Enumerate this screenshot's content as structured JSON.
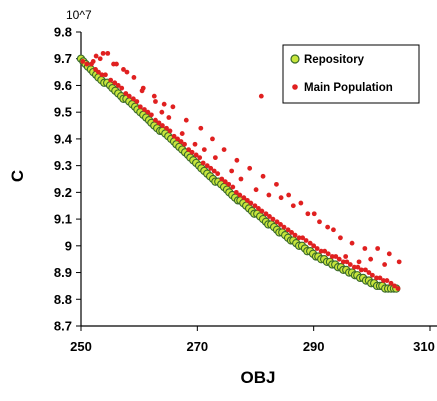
{
  "chart_data": {
    "type": "scatter",
    "title": "",
    "xlabel": "OBJ",
    "ylabel": "C",
    "y_multiplier_label": "10^7",
    "xlim": [
      250,
      310
    ],
    "ylim": [
      8.7,
      9.8
    ],
    "x_ticks": [
      "250",
      "270",
      "290",
      "310"
    ],
    "y_ticks": [
      "8.7",
      "8.8",
      "8.9",
      "9",
      "9.1",
      "9.2",
      "9.3",
      "9.4",
      "9.5",
      "9.6",
      "9.7",
      "9.8"
    ],
    "grid": false,
    "legend": {
      "position": "top-right"
    },
    "series": [
      {
        "name": "Repository",
        "marker": "circle",
        "fill": "#c8e63c",
        "stroke": "#3a6a2a",
        "x": [
          250.0,
          250.4,
          250.8,
          251.2,
          251.7,
          252.1,
          252.6,
          253.0,
          253.5,
          254.0,
          254.5,
          255.0,
          255.4,
          255.9,
          256.4,
          256.9,
          257.3,
          257.8,
          258.3,
          258.8,
          259.3,
          259.7,
          260.2,
          260.7,
          261.2,
          261.7,
          262.1,
          262.6,
          263.1,
          263.6,
          264.0,
          264.5,
          265.0,
          265.5,
          266.0,
          266.4,
          266.9,
          267.4,
          267.9,
          268.4,
          268.8,
          269.3,
          269.8,
          270.3,
          270.7,
          271.2,
          271.7,
          272.2,
          272.7,
          273.1,
          273.6,
          274.1,
          274.6,
          275.1,
          275.5,
          276.0,
          276.5,
          277.0,
          277.4,
          277.9,
          278.4,
          278.9,
          279.4,
          279.8,
          280.3,
          280.8,
          281.3,
          281.8,
          282.2,
          282.7,
          283.2,
          283.7,
          284.1,
          284.6,
          285.1,
          285.6,
          286.1,
          286.5,
          287.0,
          287.5,
          288.0,
          288.5,
          288.9,
          289.4,
          289.9,
          290.4,
          290.8,
          291.3,
          291.8,
          292.3,
          292.8,
          293.2,
          293.7,
          294.2,
          294.7,
          295.1,
          295.6,
          296.1,
          296.6,
          297.1,
          297.5,
          298.0,
          298.5,
          299.0,
          299.5,
          299.9,
          300.4,
          300.9,
          301.4,
          301.8,
          302.3,
          302.8,
          303.3,
          303.8,
          304.2
        ],
        "y": [
          9.7,
          9.69,
          9.68,
          9.67,
          9.66,
          9.65,
          9.64,
          9.63,
          9.62,
          9.61,
          9.61,
          9.6,
          9.59,
          9.58,
          9.57,
          9.56,
          9.55,
          9.55,
          9.54,
          9.53,
          9.52,
          9.51,
          9.5,
          9.49,
          9.48,
          9.47,
          9.46,
          9.45,
          9.44,
          9.43,
          9.43,
          9.42,
          9.41,
          9.4,
          9.39,
          9.38,
          9.37,
          9.36,
          9.35,
          9.34,
          9.33,
          9.32,
          9.31,
          9.3,
          9.29,
          9.28,
          9.27,
          9.26,
          9.25,
          9.24,
          9.24,
          9.23,
          9.22,
          9.21,
          9.2,
          9.19,
          9.18,
          9.17,
          9.17,
          9.16,
          9.15,
          9.14,
          9.13,
          9.12,
          9.12,
          9.11,
          9.1,
          9.09,
          9.08,
          9.08,
          9.07,
          9.06,
          9.05,
          9.05,
          9.04,
          9.03,
          9.02,
          9.02,
          9.01,
          9.0,
          9.0,
          8.99,
          8.98,
          8.98,
          8.97,
          8.96,
          8.96,
          8.95,
          8.95,
          8.94,
          8.94,
          8.93,
          8.93,
          8.92,
          8.92,
          8.91,
          8.91,
          8.9,
          8.9,
          8.89,
          8.89,
          8.88,
          8.88,
          8.87,
          8.87,
          8.86,
          8.86,
          8.85,
          8.85,
          8.85,
          8.84,
          8.84,
          8.84,
          8.84,
          8.84
        ]
      },
      {
        "name": "Main Population",
        "marker": "circle",
        "fill": "#e02020",
        "x": [
          250.3,
          251.0,
          251.8,
          252.5,
          253.0,
          253.6,
          254.2,
          255.1,
          255.8,
          256.4,
          257.0,
          257.7,
          258.3,
          259.0,
          259.6,
          260.2,
          260.9,
          261.5,
          262.1,
          262.8,
          263.4,
          264.0,
          264.7,
          265.3,
          266.0,
          266.6,
          267.2,
          267.8,
          268.5,
          269.1,
          269.8,
          270.4,
          271.0,
          271.7,
          272.3,
          272.9,
          273.5,
          274.2,
          274.8,
          275.4,
          276.1,
          276.7,
          277.3,
          278.0,
          278.6,
          279.2,
          279.9,
          280.5,
          281.1,
          281.8,
          282.4,
          283.0,
          283.7,
          284.3,
          284.9,
          285.6,
          286.2,
          286.8,
          287.5,
          288.1,
          288.7,
          289.4,
          290.0,
          290.6,
          291.3,
          291.9,
          292.5,
          293.2,
          293.8,
          294.4,
          295.1,
          295.7,
          296.3,
          297.0,
          297.6,
          298.2,
          298.9,
          299.5,
          300.1,
          300.8,
          301.4,
          302.0,
          302.6,
          303.3,
          303.9,
          304.5,
          252.6,
          253.8,
          254.6,
          256.1,
          257.3,
          259.1,
          260.7,
          262.6,
          264.3,
          265.8,
          268.1,
          270.6,
          272.6,
          274.6,
          276.8,
          279.0,
          281.3,
          283.6,
          285.7,
          287.8,
          290.1,
          292.4,
          294.6,
          296.6,
          298.8,
          301.0,
          303.0,
          252.1,
          253.3,
          255.6,
          257.9,
          260.5,
          262.8,
          263.9,
          265.1,
          267.4,
          269.6,
          271.2,
          273.1,
          275.9,
          277.5,
          280.1,
          282.3,
          284.4,
          286.5,
          289.0,
          291.0,
          293.4,
          295.5,
          297.8,
          299.8,
          302.2,
          281.0,
          304.7
        ],
        "y": [
          9.69,
          9.68,
          9.68,
          9.66,
          9.65,
          9.64,
          9.64,
          9.62,
          9.61,
          9.6,
          9.59,
          9.57,
          9.56,
          9.55,
          9.54,
          9.52,
          9.51,
          9.5,
          9.49,
          9.47,
          9.46,
          9.45,
          9.44,
          9.43,
          9.41,
          9.4,
          9.39,
          9.38,
          9.36,
          9.35,
          9.34,
          9.33,
          9.31,
          9.3,
          9.29,
          9.28,
          9.27,
          9.25,
          9.24,
          9.23,
          9.22,
          9.2,
          9.19,
          9.18,
          9.17,
          9.16,
          9.15,
          9.14,
          9.13,
          9.12,
          9.11,
          9.1,
          9.09,
          9.08,
          9.07,
          9.06,
          9.05,
          9.04,
          9.03,
          9.03,
          9.02,
          9.01,
          9.0,
          8.99,
          8.98,
          8.98,
          8.97,
          8.96,
          8.96,
          8.95,
          8.94,
          8.94,
          8.93,
          8.92,
          8.92,
          8.91,
          8.91,
          8.9,
          8.89,
          8.88,
          8.88,
          8.87,
          8.87,
          8.86,
          8.85,
          8.84,
          9.71,
          9.72,
          9.72,
          9.68,
          9.66,
          9.63,
          9.59,
          9.56,
          9.53,
          9.52,
          9.47,
          9.44,
          9.4,
          9.36,
          9.32,
          9.29,
          9.26,
          9.23,
          9.19,
          9.16,
          9.12,
          9.07,
          9.03,
          9.01,
          8.99,
          8.99,
          8.97,
          9.69,
          9.7,
          9.68,
          9.65,
          9.58,
          9.54,
          9.5,
          9.48,
          9.42,
          9.38,
          9.36,
          9.33,
          9.28,
          9.25,
          9.21,
          9.19,
          9.18,
          9.15,
          9.12,
          9.09,
          9.06,
          8.96,
          8.94,
          8.95,
          8.93,
          9.56,
          8.94
        ]
      }
    ]
  }
}
